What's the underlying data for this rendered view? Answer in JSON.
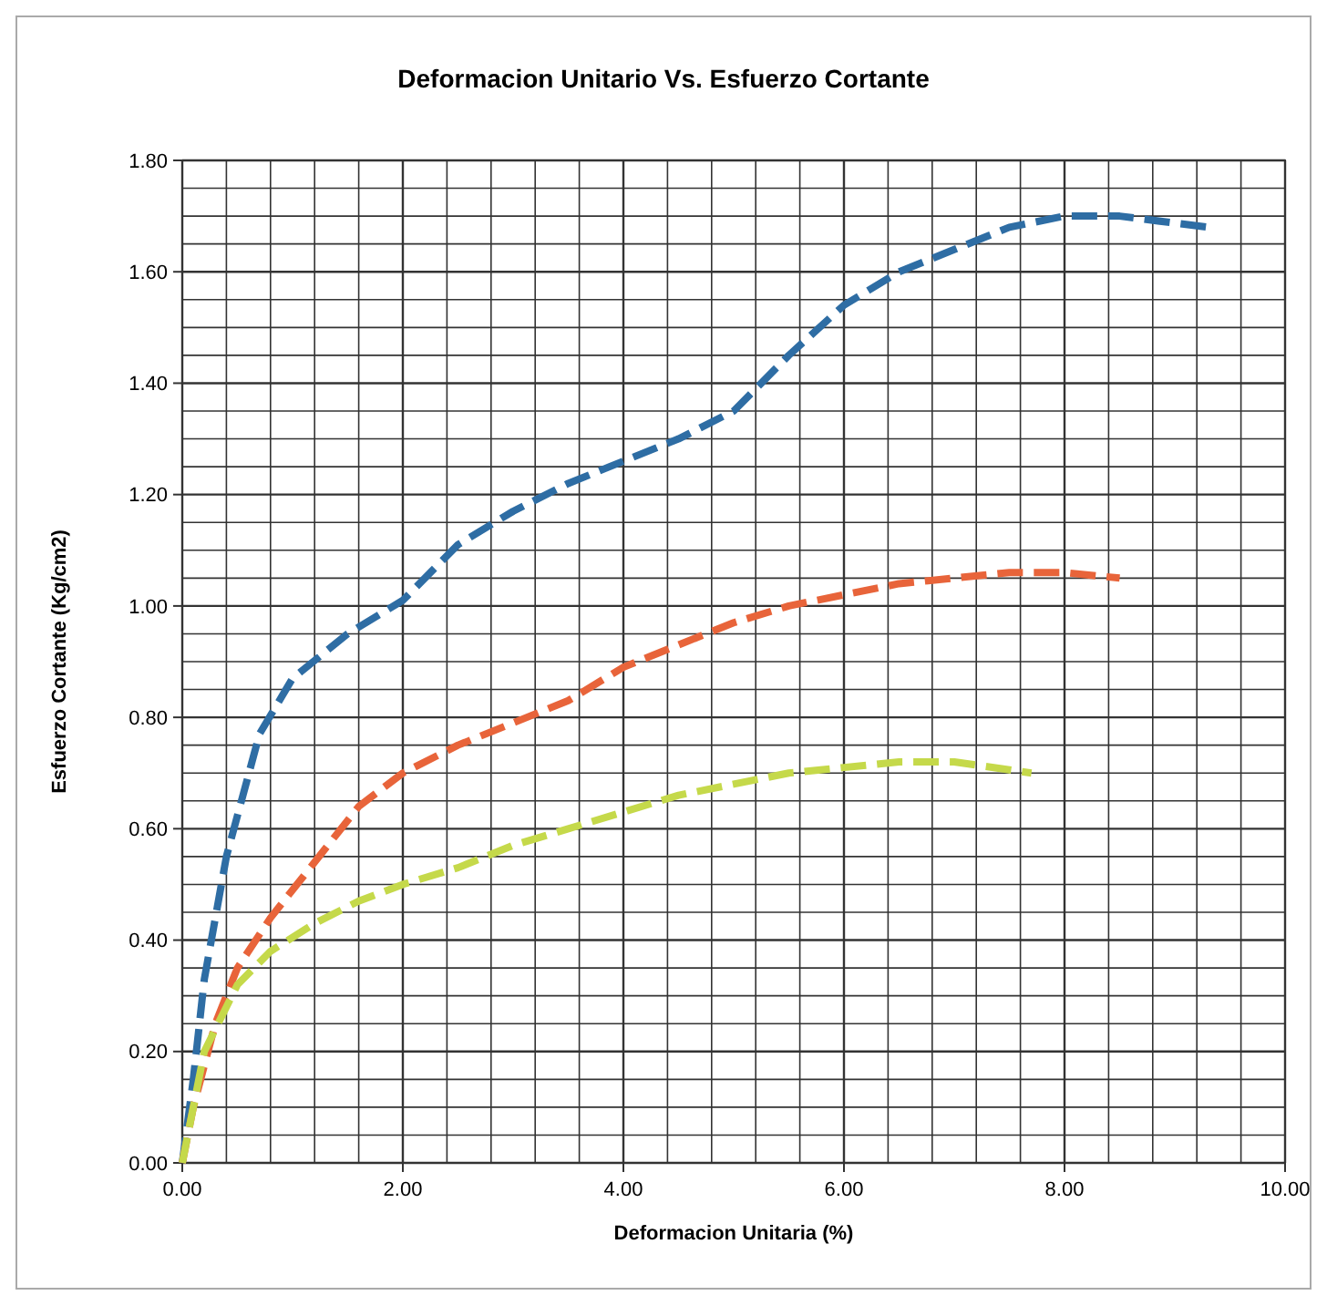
{
  "chart_data": {
    "type": "line",
    "title": "Deformacion Unitario Vs. Esfuerzo Cortante",
    "xlabel": "Deformacion Unitaria (%)",
    "ylabel": "Esfuerzo Cortante (Kg/cm2)",
    "xlim": [
      0,
      10
    ],
    "ylim": [
      0,
      1.8
    ],
    "xticks": [
      {
        "value": 0,
        "label": "0.00"
      },
      {
        "value": 2,
        "label": "2.00"
      },
      {
        "value": 4,
        "label": "4.00"
      },
      {
        "value": 6,
        "label": "6.00"
      },
      {
        "value": 8,
        "label": "8.00"
      },
      {
        "value": 10,
        "label": "10.00"
      }
    ],
    "yticks": [
      {
        "value": 0,
        "label": "0.00"
      },
      {
        "value": 0.2,
        "label": "0.20"
      },
      {
        "value": 0.4,
        "label": "0.40"
      },
      {
        "value": 0.6,
        "label": "0.60"
      },
      {
        "value": 0.8,
        "label": "0.80"
      },
      {
        "value": 1,
        "label": "1.00"
      },
      {
        "value": 1.2,
        "label": "1.20"
      },
      {
        "value": 1.4,
        "label": "1.40"
      },
      {
        "value": 1.6,
        "label": "1.60"
      },
      {
        "value": 1.8,
        "label": "1.80"
      }
    ],
    "grid": true,
    "marker": "none",
    "line_style": "dashed",
    "series": [
      {
        "color": "#2e6da4",
        "x": [
          0,
          0.1,
          0.2,
          0.4,
          0.7,
          1.0,
          1.5,
          2.0,
          2.5,
          3.0,
          3.5,
          4.0,
          4.5,
          5.0,
          5.5,
          6.0,
          6.5,
          7.0,
          7.5,
          8.0,
          8.5,
          9.3
        ],
        "values": [
          0,
          0.15,
          0.33,
          0.55,
          0.77,
          0.87,
          0.95,
          1.01,
          1.11,
          1.17,
          1.22,
          1.26,
          1.3,
          1.35,
          1.45,
          1.54,
          1.6,
          1.64,
          1.68,
          1.7,
          1.7,
          1.68
        ]
      },
      {
        "color": "#e8643a",
        "x": [
          0,
          0.1,
          0.3,
          0.5,
          0.8,
          1.2,
          1.6,
          2.0,
          2.5,
          3.0,
          3.5,
          4.0,
          4.5,
          5.0,
          5.5,
          6.0,
          6.5,
          7.0,
          7.5,
          8.0,
          8.5
        ],
        "values": [
          0,
          0.1,
          0.25,
          0.35,
          0.44,
          0.54,
          0.64,
          0.7,
          0.75,
          0.79,
          0.83,
          0.89,
          0.93,
          0.97,
          1.0,
          1.02,
          1.04,
          1.05,
          1.06,
          1.06,
          1.05
        ]
      },
      {
        "color": "#c5d94a",
        "x": [
          0,
          0.2,
          0.5,
          0.8,
          1.2,
          1.6,
          2.0,
          2.5,
          3.0,
          3.5,
          4.0,
          4.5,
          5.0,
          5.5,
          6.0,
          6.5,
          7.0,
          7.7
        ],
        "values": [
          0,
          0.2,
          0.32,
          0.38,
          0.43,
          0.47,
          0.5,
          0.53,
          0.57,
          0.6,
          0.63,
          0.66,
          0.68,
          0.7,
          0.71,
          0.72,
          0.72,
          0.7
        ]
      }
    ]
  }
}
